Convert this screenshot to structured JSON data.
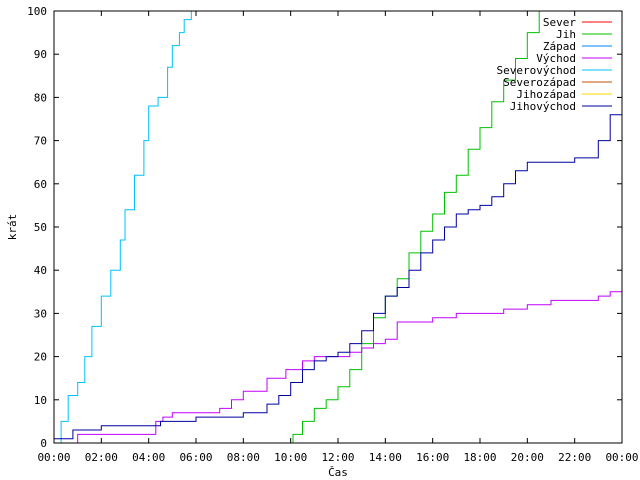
{
  "chart_data": {
    "type": "line",
    "xlabel": "Čas",
    "ylabel": "krát",
    "xlim": [
      0,
      24
    ],
    "ylim": [
      0,
      100
    ],
    "grid": false,
    "legend_position": "top-right",
    "x_ticks": [
      {
        "value": 0,
        "label": "00:00"
      },
      {
        "value": 2,
        "label": "02:00"
      },
      {
        "value": 4,
        "label": "04:00"
      },
      {
        "value": 6,
        "label": "06:00"
      },
      {
        "value": 8,
        "label": "08:00"
      },
      {
        "value": 10,
        "label": "10:00"
      },
      {
        "value": 12,
        "label": "12:00"
      },
      {
        "value": 14,
        "label": "14:00"
      },
      {
        "value": 16,
        "label": "16:00"
      },
      {
        "value": 18,
        "label": "18:00"
      },
      {
        "value": 20,
        "label": "20:00"
      },
      {
        "value": 22,
        "label": "22:00"
      },
      {
        "value": 24,
        "label": "00:00"
      }
    ],
    "y_ticks": [
      0,
      10,
      20,
      30,
      40,
      50,
      60,
      70,
      80,
      90,
      100
    ],
    "series": [
      {
        "name": "Sever",
        "color": "#ff0000",
        "x": [],
        "y": []
      },
      {
        "name": "Jih",
        "color": "#00c000",
        "x": [
          10.0,
          10.1,
          10.5,
          11.0,
          11.5,
          12.0,
          12.5,
          13.0,
          13.5,
          14.0,
          14.5,
          15.0,
          15.5,
          16.0,
          16.5,
          17.0,
          17.5,
          18.0,
          18.5,
          19.0,
          19.5,
          20.0,
          20.5
        ],
        "y": [
          0,
          2,
          5,
          8,
          10,
          13,
          17,
          23,
          29,
          34,
          38,
          44,
          49,
          53,
          58,
          62,
          68,
          73,
          79,
          84,
          89,
          95,
          100
        ]
      },
      {
        "name": "Západ",
        "color": "#0080ff",
        "x": [],
        "y": []
      },
      {
        "name": "Východ",
        "color": "#c000ff",
        "x": [
          0.0,
          0.7,
          1.0,
          2.0,
          3.0,
          4.3,
          4.6,
          5.0,
          6.0,
          7.0,
          7.5,
          8.0,
          9.0,
          9.8,
          10.5,
          11.0,
          12.0,
          12.5,
          13.0,
          13.5,
          14.0,
          14.5,
          15.0,
          16.0,
          17.0,
          18.0,
          19.0,
          20.0,
          21.0,
          22.0,
          23.0,
          23.5,
          24.0
        ],
        "y": [
          0,
          0,
          2,
          2,
          2,
          5,
          6,
          7,
          7,
          8,
          10,
          12,
          15,
          17,
          19,
          20,
          20,
          21,
          22,
          23,
          24,
          28,
          28,
          29,
          30,
          30,
          31,
          32,
          33,
          33,
          34,
          35,
          35
        ]
      },
      {
        "name": "Severovýchod",
        "color": "#00c0ff",
        "x": [
          0.0,
          0.3,
          0.6,
          1.0,
          1.3,
          1.6,
          2.0,
          2.4,
          2.8,
          3.0,
          3.4,
          3.8,
          4.0,
          4.4,
          4.8,
          5.0,
          5.3,
          5.5,
          5.8
        ],
        "y": [
          0,
          5,
          11,
          14,
          20,
          27,
          34,
          40,
          47,
          54,
          62,
          70,
          78,
          80,
          87,
          92,
          95,
          98,
          100
        ]
      },
      {
        "name": "Severozápad",
        "color": "#c05000",
        "x": [],
        "y": []
      },
      {
        "name": "Jihozápad",
        "color": "#ffd700",
        "x": [],
        "y": []
      },
      {
        "name": "Jihovýchod",
        "color": "#0000a0",
        "x": [
          0.0,
          0.8,
          1.5,
          2.0,
          3.0,
          4.0,
          4.5,
          5.0,
          6.0,
          7.0,
          7.5,
          8.0,
          9.0,
          9.5,
          10.0,
          10.5,
          11.0,
          11.5,
          12.0,
          12.5,
          13.0,
          13.5,
          14.0,
          14.5,
          15.0,
          15.5,
          16.0,
          16.5,
          17.0,
          17.5,
          18.0,
          18.5,
          19.0,
          19.5,
          20.0,
          20.5,
          21.0,
          21.5,
          22.0,
          22.5,
          23.0,
          23.5,
          24.0
        ],
        "y": [
          1,
          3,
          3,
          4,
          4,
          4,
          5,
          5,
          6,
          6,
          6,
          7,
          9,
          11,
          14,
          17,
          19,
          20,
          21,
          23,
          26,
          30,
          34,
          36,
          40,
          44,
          47,
          50,
          53,
          54,
          55,
          57,
          60,
          63,
          65,
          65,
          65,
          65,
          66,
          66,
          70,
          76,
          80
        ]
      }
    ]
  }
}
